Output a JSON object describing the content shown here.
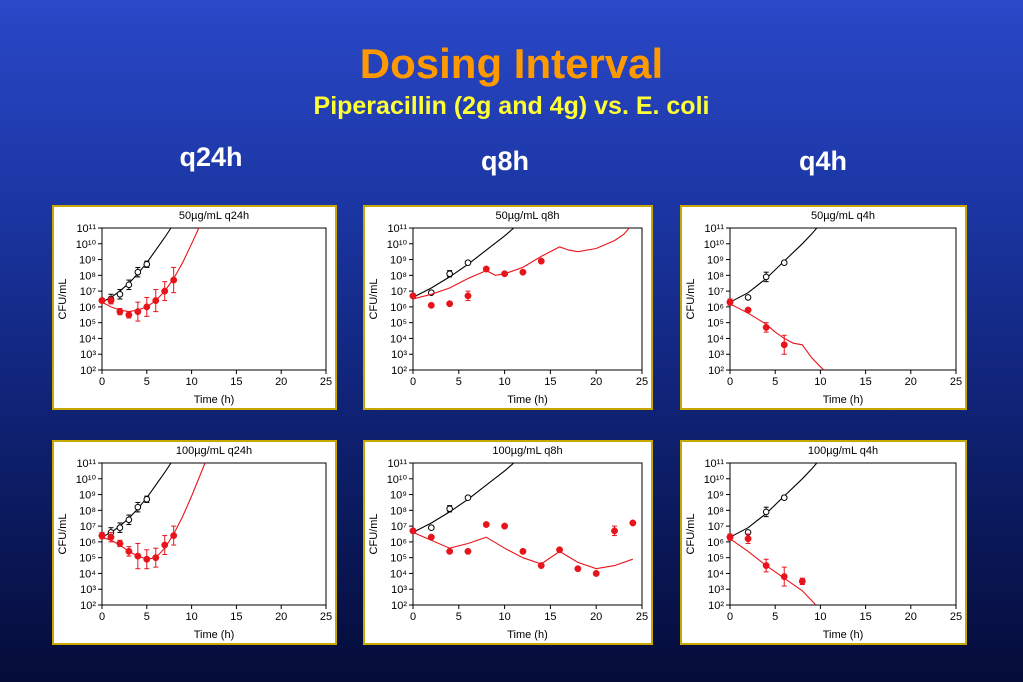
{
  "slide": {
    "title": "Dosing Interval",
    "subtitle": "Piperacillin (2g and 4g) vs. E. coli",
    "columns": [
      "q24h",
      "q8h",
      "q4h"
    ]
  },
  "colors": {
    "title": "#ff9900",
    "subtitle": "#ffff33",
    "control": "#000000",
    "treated": "#e8141c",
    "panel_border": "#c8a800"
  },
  "chart_data": [
    {
      "type": "scatter",
      "title": "50µg/mL q24h",
      "xlabel": "Time (h)",
      "ylabel": "CFU/mL",
      "xlim": [
        0,
        25
      ],
      "ylim": [
        2,
        11
      ],
      "y_scale": "log10",
      "x_ticks": [
        0,
        5,
        10,
        15,
        20,
        25
      ],
      "y_ticks": [
        2,
        3,
        4,
        5,
        6,
        7,
        8,
        9,
        10,
        11
      ],
      "grid": false,
      "series": [
        {
          "role": "control",
          "points": [
            [
              0,
              6.4
            ],
            [
              1,
              6.5
            ],
            [
              2,
              6.8
            ],
            [
              3,
              7.4
            ],
            [
              4,
              8.2
            ],
            [
              5,
              8.7
            ]
          ],
          "errors": [
            0.1,
            0.3,
            0.3,
            0.3,
            0.3,
            0.2
          ],
          "curve": [
            [
              0,
              6.3
            ],
            [
              1,
              6.6
            ],
            [
              2,
              7.0
            ],
            [
              3,
              7.5
            ],
            [
              4,
              8.1
            ],
            [
              5,
              8.8
            ],
            [
              6,
              9.6
            ],
            [
              7,
              10.4
            ],
            [
              7.7,
              11
            ]
          ]
        },
        {
          "role": "treated",
          "points": [
            [
              0,
              6.4
            ],
            [
              1,
              6.4
            ],
            [
              2,
              5.7
            ],
            [
              3,
              5.5
            ],
            [
              4,
              5.7
            ],
            [
              5,
              6.0
            ],
            [
              6,
              6.4
            ],
            [
              7,
              7.0
            ],
            [
              8,
              7.7
            ]
          ],
          "errors": [
            0.1,
            0.2,
            0.2,
            0.2,
            0.6,
            0.6,
            0.7,
            0.6,
            0.8
          ],
          "curve": [
            [
              0,
              6.3
            ],
            [
              1,
              6.0
            ],
            [
              2,
              5.8
            ],
            [
              3,
              5.7
            ],
            [
              4,
              5.8
            ],
            [
              5,
              6.0
            ],
            [
              6,
              6.4
            ],
            [
              7,
              7.0
            ],
            [
              8,
              7.8
            ],
            [
              9,
              8.8
            ],
            [
              10,
              10.0
            ],
            [
              10.8,
              11
            ]
          ]
        }
      ]
    },
    {
      "type": "scatter",
      "title": "50µg/mL q8h",
      "xlabel": "Time (h)",
      "ylabel": "CFU/mL",
      "xlim": [
        0,
        25
      ],
      "ylim": [
        2,
        11
      ],
      "y_scale": "log10",
      "x_ticks": [
        0,
        5,
        10,
        15,
        20,
        25
      ],
      "y_ticks": [
        2,
        3,
        4,
        5,
        6,
        7,
        8,
        9,
        10,
        11
      ],
      "grid": false,
      "series": [
        {
          "role": "control",
          "points": [
            [
              0,
              6.7
            ],
            [
              2,
              6.9
            ],
            [
              4,
              8.1
            ],
            [
              6,
              8.8
            ]
          ],
          "errors": [
            0.1,
            0.1,
            0.2,
            0.1
          ],
          "curve": [
            [
              0,
              6.6
            ],
            [
              2,
              7.2
            ],
            [
              4,
              7.9
            ],
            [
              6,
              8.7
            ],
            [
              8,
              9.6
            ],
            [
              10,
              10.5
            ],
            [
              11,
              11
            ]
          ]
        },
        {
          "role": "treated",
          "points": [
            [
              0,
              6.7
            ],
            [
              2,
              6.1
            ],
            [
              4,
              6.2
            ],
            [
              6,
              6.7
            ],
            [
              8,
              8.4
            ],
            [
              10,
              8.1
            ],
            [
              12,
              8.2
            ],
            [
              14,
              8.9
            ]
          ],
          "errors": [
            0.1,
            0.1,
            0.1,
            0.3,
            0.1,
            0.1,
            0.1,
            0.1
          ],
          "curve": [
            [
              0,
              6.5
            ],
            [
              2,
              6.8
            ],
            [
              4,
              7.2
            ],
            [
              6,
              7.8
            ],
            [
              8,
              8.3
            ],
            [
              9,
              8.0
            ],
            [
              10,
              8.1
            ],
            [
              12,
              8.5
            ],
            [
              14,
              9.2
            ],
            [
              16,
              9.8
            ],
            [
              17,
              9.6
            ],
            [
              18,
              9.5
            ],
            [
              20,
              9.7
            ],
            [
              22,
              10.2
            ],
            [
              23,
              10.6
            ],
            [
              23.6,
              11
            ]
          ]
        }
      ]
    },
    {
      "type": "scatter",
      "title": "50µg/mL q4h",
      "xlabel": "Time (h)",
      "ylabel": "CFU/mL",
      "xlim": [
        0,
        25
      ],
      "ylim": [
        2,
        11
      ],
      "y_scale": "log10",
      "x_ticks": [
        0,
        5,
        10,
        15,
        20,
        25
      ],
      "y_ticks": [
        2,
        3,
        4,
        5,
        6,
        7,
        8,
        9,
        10,
        11
      ],
      "grid": false,
      "series": [
        {
          "role": "control",
          "points": [
            [
              0,
              6.3
            ],
            [
              2,
              6.6
            ],
            [
              4,
              7.9
            ],
            [
              6,
              8.8
            ]
          ],
          "errors": [
            0.1,
            0.1,
            0.3,
            0.1
          ],
          "curve": [
            [
              0,
              6.3
            ],
            [
              2,
              6.9
            ],
            [
              4,
              7.8
            ],
            [
              6,
              8.9
            ],
            [
              8,
              10.0
            ],
            [
              9,
              10.6
            ],
            [
              9.6,
              11
            ]
          ]
        },
        {
          "role": "treated",
          "points": [
            [
              0,
              6.3
            ],
            [
              2,
              5.8
            ],
            [
              4,
              4.7
            ],
            [
              6,
              3.6
            ]
          ],
          "errors": [
            0.2,
            0.1,
            0.3,
            0.6
          ],
          "curve": [
            [
              0,
              6.2
            ],
            [
              2,
              5.6
            ],
            [
              4,
              4.9
            ],
            [
              5,
              4.4
            ],
            [
              6,
              4.0
            ],
            [
              7,
              3.7
            ],
            [
              8,
              3.6
            ],
            [
              9,
              2.8
            ],
            [
              10,
              2.2
            ],
            [
              10.4,
              2.0
            ]
          ]
        }
      ]
    },
    {
      "type": "scatter",
      "title": "100µg/mL q24h",
      "xlabel": "Time (h)",
      "ylabel": "CFU/mL",
      "xlim": [
        0,
        25
      ],
      "ylim": [
        2,
        11
      ],
      "y_scale": "log10",
      "x_ticks": [
        0,
        5,
        10,
        15,
        20,
        25
      ],
      "y_ticks": [
        2,
        3,
        4,
        5,
        6,
        7,
        8,
        9,
        10,
        11
      ],
      "grid": false,
      "series": [
        {
          "role": "control",
          "points": [
            [
              0,
              6.4
            ],
            [
              1,
              6.6
            ],
            [
              2,
              6.9
            ],
            [
              3,
              7.4
            ],
            [
              4,
              8.2
            ],
            [
              5,
              8.7
            ]
          ],
          "errors": [
            0.1,
            0.3,
            0.3,
            0.3,
            0.3,
            0.2
          ],
          "curve": [
            [
              0,
              6.3
            ],
            [
              1,
              6.6
            ],
            [
              2,
              7.0
            ],
            [
              3,
              7.5
            ],
            [
              4,
              8.1
            ],
            [
              5,
              8.8
            ],
            [
              6,
              9.6
            ],
            [
              7,
              10.4
            ],
            [
              7.7,
              11
            ]
          ]
        },
        {
          "role": "treated",
          "points": [
            [
              0,
              6.4
            ],
            [
              1,
              6.3
            ],
            [
              2,
              5.9
            ],
            [
              3,
              5.4
            ],
            [
              4,
              5.1
            ],
            [
              5,
              4.9
            ],
            [
              6,
              5.0
            ],
            [
              7,
              5.8
            ],
            [
              8,
              6.4
            ]
          ],
          "errors": [
            0.2,
            0.3,
            0.2,
            0.3,
            0.8,
            0.6,
            0.6,
            0.6,
            0.6
          ],
          "curve": [
            [
              0,
              6.3
            ],
            [
              1,
              6.1
            ],
            [
              2,
              5.8
            ],
            [
              3,
              5.4
            ],
            [
              4,
              5.1
            ],
            [
              5,
              4.9
            ],
            [
              6,
              5.0
            ],
            [
              7,
              5.6
            ],
            [
              8,
              6.5
            ],
            [
              9,
              7.6
            ],
            [
              10,
              8.9
            ],
            [
              11,
              10.3
            ],
            [
              11.5,
              11
            ]
          ]
        }
      ]
    },
    {
      "type": "scatter",
      "title": "100µg/mL q8h",
      "xlabel": "Time (h)",
      "ylabel": "CFU/mL",
      "xlim": [
        0,
        25
      ],
      "ylim": [
        2,
        11
      ],
      "y_scale": "log10",
      "x_ticks": [
        0,
        5,
        10,
        15,
        20,
        25
      ],
      "y_ticks": [
        2,
        3,
        4,
        5,
        6,
        7,
        8,
        9,
        10,
        11
      ],
      "grid": false,
      "series": [
        {
          "role": "control",
          "points": [
            [
              0,
              6.7
            ],
            [
              2,
              6.9
            ],
            [
              4,
              8.1
            ],
            [
              6,
              8.8
            ]
          ],
          "errors": [
            0.1,
            0.1,
            0.2,
            0.1
          ],
          "curve": [
            [
              0,
              6.6
            ],
            [
              2,
              7.2
            ],
            [
              4,
              7.9
            ],
            [
              6,
              8.7
            ],
            [
              8,
              9.6
            ],
            [
              10,
              10.5
            ],
            [
              11,
              11
            ]
          ]
        },
        {
          "role": "treated",
          "points": [
            [
              0,
              6.7
            ],
            [
              2,
              6.3
            ],
            [
              4,
              5.4
            ],
            [
              6,
              5.4
            ],
            [
              8,
              7.1
            ],
            [
              10,
              7.0
            ],
            [
              12,
              5.4
            ],
            [
              14,
              4.5
            ],
            [
              16,
              5.5
            ],
            [
              18,
              4.3
            ],
            [
              20,
              4.0
            ],
            [
              22,
              6.7
            ],
            [
              24,
              7.2
            ]
          ],
          "errors": [
            0.1,
            0.1,
            0.1,
            0.1,
            0.1,
            0.1,
            0.1,
            0.1,
            0.1,
            0.1,
            0.1,
            0.3,
            0.1
          ],
          "curve": [
            [
              0,
              6.6
            ],
            [
              2,
              6.1
            ],
            [
              4,
              5.6
            ],
            [
              6,
              5.9
            ],
            [
              8,
              6.3
            ],
            [
              10,
              5.6
            ],
            [
              12,
              5.0
            ],
            [
              14,
              4.6
            ],
            [
              16,
              5.4
            ],
            [
              18,
              4.7
            ],
            [
              20,
              4.3
            ],
            [
              22,
              4.5
            ],
            [
              24,
              4.9
            ]
          ]
        }
      ]
    },
    {
      "type": "scatter",
      "title": "100µg/mL q4h",
      "xlabel": "Time (h)",
      "ylabel": "CFU/mL",
      "xlim": [
        0,
        25
      ],
      "ylim": [
        2,
        11
      ],
      "y_scale": "log10",
      "x_ticks": [
        0,
        5,
        10,
        15,
        20,
        25
      ],
      "y_ticks": [
        2,
        3,
        4,
        5,
        6,
        7,
        8,
        9,
        10,
        11
      ],
      "grid": false,
      "series": [
        {
          "role": "control",
          "points": [
            [
              0,
              6.3
            ],
            [
              2,
              6.6
            ],
            [
              4,
              7.9
            ],
            [
              6,
              8.8
            ]
          ],
          "errors": [
            0.1,
            0.1,
            0.3,
            0.1
          ],
          "curve": [
            [
              0,
              6.3
            ],
            [
              2,
              6.9
            ],
            [
              4,
              7.8
            ],
            [
              6,
              8.9
            ],
            [
              8,
              10.0
            ],
            [
              9,
              10.6
            ],
            [
              9.6,
              11
            ]
          ]
        },
        {
          "role": "treated",
          "points": [
            [
              0,
              6.3
            ],
            [
              2,
              6.2
            ],
            [
              4,
              4.5
            ],
            [
              6,
              3.8
            ],
            [
              8,
              3.5
            ]
          ],
          "errors": [
            0.2,
            0.3,
            0.4,
            0.6,
            0.2
          ],
          "curve": [
            [
              0,
              6.2
            ],
            [
              2,
              5.4
            ],
            [
              4,
              4.5
            ],
            [
              6,
              3.7
            ],
            [
              8,
              2.9
            ],
            [
              9.5,
              2.0
            ]
          ]
        }
      ]
    }
  ]
}
